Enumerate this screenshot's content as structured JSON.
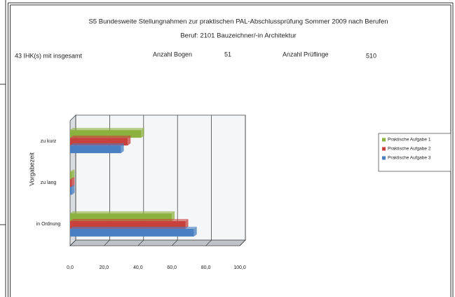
{
  "header": {
    "title": "S5 Bundesweite Stellungnahmen zur praktischen PAL-Abschlussprüfung Sommer 2009 nach Berufen",
    "subtitle": "Beruf: 2101 Bauzeichner/-in Architektur",
    "info": [
      "43 IHK(s) mit insgesamt",
      "Anzahl Bogen",
      "51",
      "Anzahl Prüflinge",
      "510"
    ]
  },
  "chart_data": {
    "type": "bar",
    "orientation": "horizontal",
    "y_label": "Vorgabezeit",
    "categories": [
      "zu kurz",
      "zu lang",
      "in Ordnung"
    ],
    "series": [
      {
        "name": "Praktische Aufgabe 1",
        "color": "#8db13f",
        "values": [
          42,
          1,
          60
        ]
      },
      {
        "name": "Praktische Aufgabe 2",
        "color": "#c8413d",
        "values": [
          34,
          1,
          68
        ]
      },
      {
        "name": "Praktische Aufgabe 3",
        "color": "#4a7fc1",
        "values": [
          30,
          1,
          73
        ]
      }
    ],
    "xlim": [
      0,
      100
    ],
    "xticks": [
      {
        "value": 0,
        "label": "0,0"
      },
      {
        "value": 20,
        "label": "20,0"
      },
      {
        "value": 40,
        "label": "40,0"
      },
      {
        "value": 60,
        "label": "60,0"
      },
      {
        "value": 80,
        "label": "80,0"
      },
      {
        "value": 100,
        "label": "100,0"
      }
    ],
    "grid": true,
    "legend": "right"
  }
}
